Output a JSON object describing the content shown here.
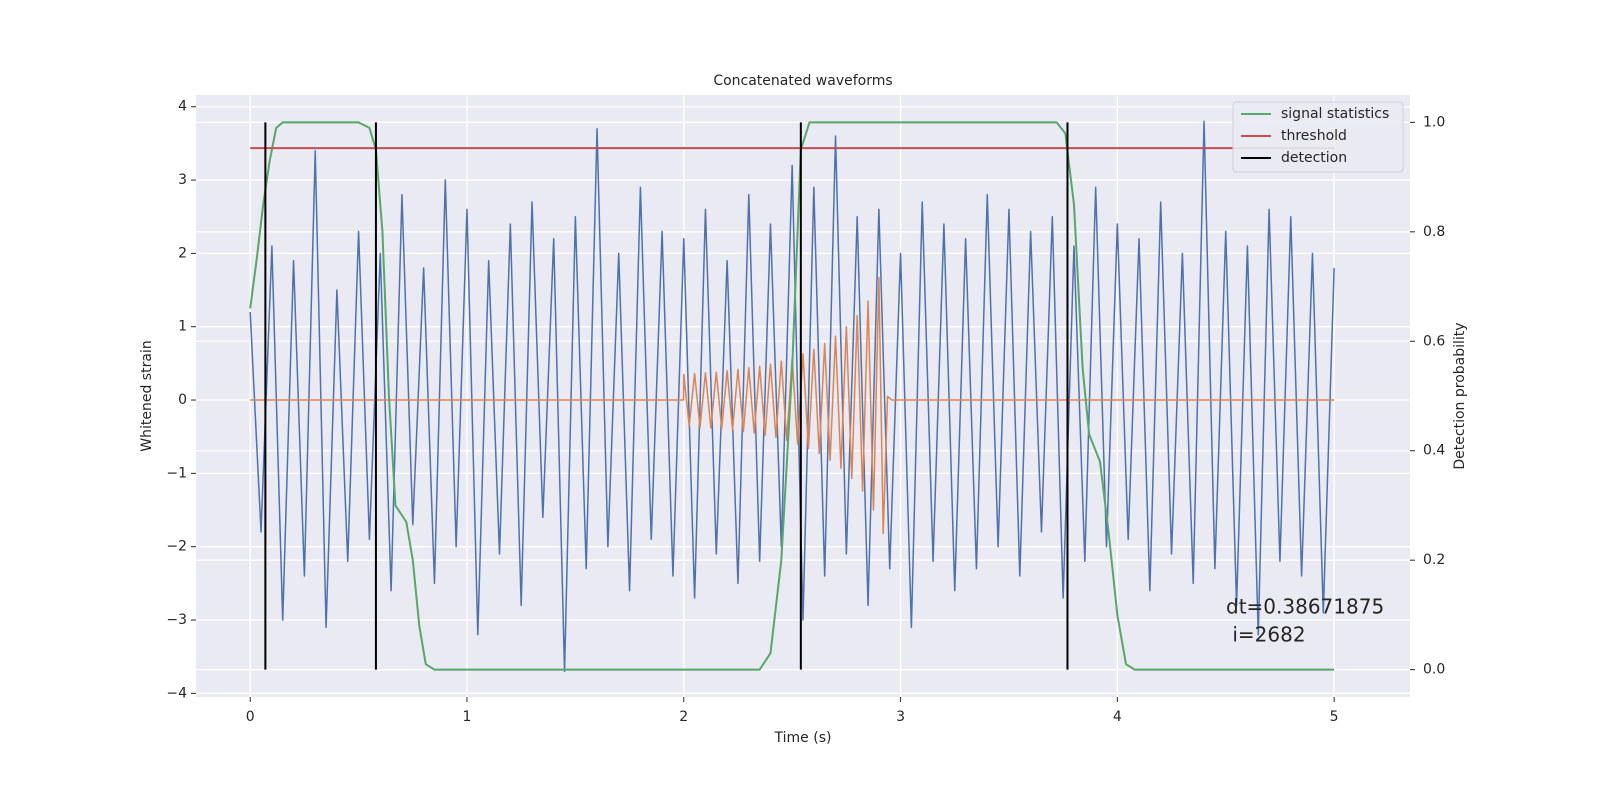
{
  "chart_data": {
    "type": "line",
    "title": "Concatenated waveforms",
    "x_label": "Time (s)",
    "y_label": "Whitened strain",
    "y2_label": "Detection probability",
    "annotation": [
      "dt=0.38671875",
      " i=2682"
    ],
    "xlim": [
      -0.25,
      5.35
    ],
    "ylim": [
      -4.05,
      4.16
    ],
    "y2lim": [
      -0.05,
      1.05
    ],
    "xticks": [
      0,
      1,
      2,
      3,
      4,
      5
    ],
    "yticks": [
      {
        "value": -4,
        "label": "−4"
      },
      {
        "value": -3,
        "label": "−3"
      },
      {
        "value": -2,
        "label": "−2"
      },
      {
        "value": -1,
        "label": "−1"
      },
      0,
      1,
      2,
      3,
      4
    ],
    "y2ticks": [
      {
        "value": 0,
        "label": "0.0"
      },
      0.2,
      0.4,
      0.6,
      0.8,
      {
        "value": 1,
        "label": "1.0"
      }
    ],
    "grid": true,
    "legend": "upper right",
    "series": [
      {
        "color": "#4c72b0",
        "axis": "y",
        "x": [
          0,
          0.05,
          0.1,
          0.15,
          0.2,
          0.25,
          0.3,
          0.35,
          0.4,
          0.45,
          0.5,
          0.55,
          0.6,
          0.65,
          0.7,
          0.75,
          0.8,
          0.85,
          0.9,
          0.95,
          1,
          1.05,
          1.1,
          1.15,
          1.2,
          1.25,
          1.3,
          1.35,
          1.4,
          1.45,
          1.5,
          1.55,
          1.6,
          1.65,
          1.7,
          1.75,
          1.8,
          1.85,
          1.9,
          1.95,
          2,
          2.05,
          2.1,
          2.15,
          2.2,
          2.25,
          2.3,
          2.35,
          2.4,
          2.45,
          2.5,
          2.55,
          2.6,
          2.65,
          2.7,
          2.75,
          2.8,
          2.85,
          2.9,
          2.95,
          3,
          3.05,
          3.1,
          3.15,
          3.2,
          3.25,
          3.3,
          3.35,
          3.4,
          3.45,
          3.5,
          3.55,
          3.6,
          3.65,
          3.7,
          3.75,
          3.8,
          3.85,
          3.9,
          3.95,
          4,
          4.05,
          4.1,
          4.15,
          4.2,
          4.25,
          4.3,
          4.35,
          4.4,
          4.45,
          4.5,
          4.55,
          4.6,
          4.65,
          4.7,
          4.75,
          4.8,
          4.85,
          4.9,
          4.95,
          5
        ],
        "values": [
          1.2,
          -1.8,
          2.1,
          -3.0,
          1.9,
          -2.4,
          3.4,
          -3.1,
          1.5,
          -2.2,
          2.3,
          -1.9,
          2.0,
          -2.6,
          2.8,
          -1.7,
          1.8,
          -2.5,
          3.0,
          -2.0,
          2.6,
          -3.2,
          1.9,
          -2.1,
          2.4,
          -2.8,
          2.7,
          -1.6,
          2.2,
          -3.7,
          2.5,
          -2.3,
          3.7,
          -2.0,
          2.0,
          -2.6,
          2.9,
          -1.9,
          2.3,
          -2.4,
          2.2,
          -2.7,
          2.6,
          -2.1,
          1.9,
          -2.5,
          2.8,
          -2.2,
          2.4,
          -2.0,
          3.2,
          -3.0,
          2.9,
          -2.4,
          3.6,
          -2.1,
          2.5,
          -2.8,
          2.6,
          -2.3,
          2.0,
          -3.1,
          2.7,
          -2.2,
          2.4,
          -2.6,
          2.2,
          -2.3,
          2.8,
          -2.0,
          2.6,
          -2.4,
          2.3,
          -1.8,
          2.5,
          -2.7,
          2.1,
          -2.2,
          2.9,
          -2.0,
          2.4,
          -1.9,
          2.2,
          -2.6,
          2.7,
          -2.1,
          2.0,
          -2.5,
          3.8,
          -2.3,
          2.3,
          -2.8,
          2.1,
          -3.2,
          2.6,
          -2.2,
          2.5,
          -2.4,
          2.0,
          -2.9,
          1.8
        ]
      },
      {
        "color": "#dd8452",
        "axis": "y",
        "x": [
          0,
          1.999,
          2.0,
          2.025,
          2.05,
          2.075,
          2.1,
          2.125,
          2.15,
          2.175,
          2.2,
          2.225,
          2.25,
          2.275,
          2.3,
          2.325,
          2.35,
          2.375,
          2.4,
          2.425,
          2.45,
          2.475,
          2.5,
          2.525,
          2.55,
          2.575,
          2.6,
          2.625,
          2.65,
          2.675,
          2.7,
          2.725,
          2.75,
          2.775,
          2.8,
          2.825,
          2.85,
          2.875,
          2.9,
          2.92,
          2.94,
          2.96,
          5
        ],
        "values": [
          0,
          0,
          0.35,
          -0.35,
          0.36,
          -0.37,
          0.37,
          -0.38,
          0.38,
          -0.39,
          0.4,
          -0.41,
          0.42,
          -0.43,
          0.44,
          -0.45,
          0.46,
          -0.48,
          0.49,
          -0.51,
          0.53,
          -0.55,
          0.57,
          -0.6,
          0.63,
          -0.66,
          0.69,
          -0.73,
          0.77,
          -0.82,
          0.87,
          -0.93,
          1.0,
          -1.07,
          1.15,
          -1.24,
          1.35,
          -1.5,
          1.67,
          -1.82,
          0.05,
          0,
          0
        ]
      },
      {
        "name": "signal statistics",
        "color": "#55a868",
        "axis": "y2",
        "x": [
          0,
          0.03,
          0.06,
          0.09,
          0.12,
          0.15,
          0.5,
          0.55,
          0.58,
          0.61,
          0.64,
          0.67,
          0.72,
          0.75,
          0.78,
          0.81,
          0.85,
          2.35,
          2.4,
          2.45,
          2.5,
          2.54,
          2.58,
          3.72,
          3.76,
          3.8,
          3.84,
          3.87,
          3.92,
          3.96,
          4.0,
          4.04,
          4.08,
          5
        ],
        "values": [
          0.66,
          0.75,
          0.85,
          0.93,
          0.99,
          1.0,
          1.0,
          0.99,
          0.95,
          0.8,
          0.5,
          0.3,
          0.27,
          0.2,
          0.08,
          0.01,
          0,
          0,
          0.03,
          0.2,
          0.55,
          0.95,
          1.0,
          1.0,
          0.98,
          0.85,
          0.55,
          0.43,
          0.38,
          0.25,
          0.1,
          0.01,
          0,
          0
        ]
      },
      {
        "name": "threshold",
        "color": "#c44e52",
        "axis": "y2",
        "x": [
          0,
          5
        ],
        "values": [
          0.953,
          0.953
        ]
      },
      {
        "name": "detection",
        "color": "#000000",
        "axis": "y2",
        "kind": "vlines",
        "x": [
          0.07,
          0.58,
          2.54,
          3.77
        ],
        "ymin": 0,
        "ymax": 1
      }
    ]
  }
}
